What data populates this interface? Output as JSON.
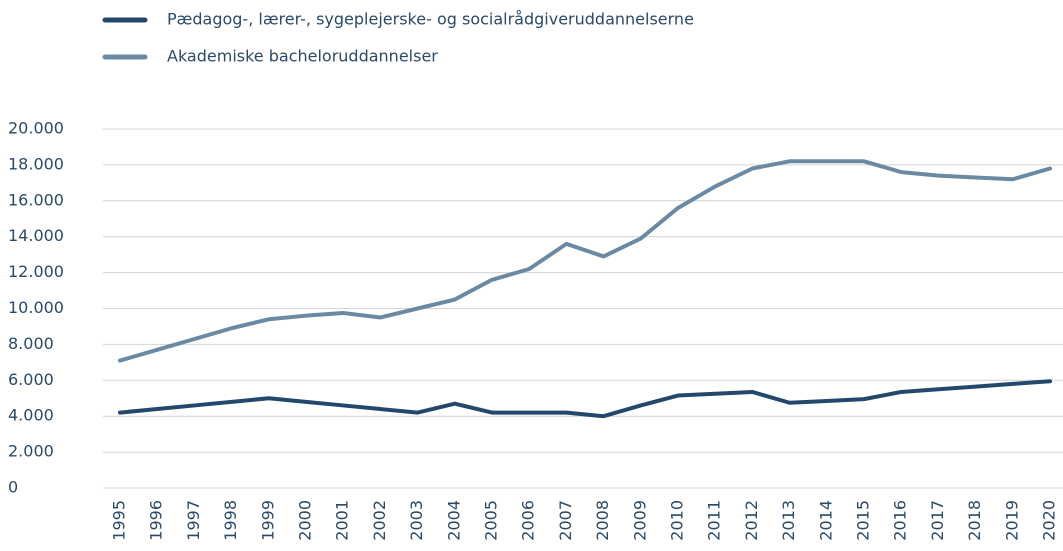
{
  "chart_data": {
    "type": "line",
    "categories": [
      "1995",
      "1996",
      "1997",
      "1998",
      "1999",
      "2000",
      "2001",
      "2002",
      "2003",
      "2004",
      "2005",
      "2006",
      "2007",
      "2008",
      "2009",
      "2010",
      "2011",
      "2012",
      "2013",
      "2014",
      "2015",
      "2016",
      "2017",
      "2018",
      "2019",
      "2020"
    ],
    "series": [
      {
        "name": "Pædagog-, lærer-, sygeplejerske- og socialrådgiveruddannelserne",
        "color": "#23486c",
        "values": [
          4200,
          4400,
          4600,
          4800,
          5000,
          4800,
          4600,
          4400,
          4200,
          4700,
          4200,
          4200,
          4200,
          4000,
          4600,
          5150,
          5250,
          5350,
          4750,
          4850,
          4950,
          5350,
          5500,
          5650,
          5800,
          5950
        ]
      },
      {
        "name": "Akademiske bacheloruddannelser",
        "color": "#6a8aa4",
        "values": [
          7100,
          7700,
          8300,
          8900,
          9400,
          9600,
          9750,
          9500,
          10000,
          10500,
          11600,
          12200,
          13600,
          12900,
          13900,
          15600,
          16800,
          17800,
          18200,
          18200,
          18200,
          17600,
          17400,
          17300,
          17200,
          17800
        ]
      }
    ],
    "ylim": [
      0,
      20000
    ],
    "yticks": [
      0,
      {
        "value": 2000,
        "label": "2.000"
      },
      {
        "value": 4000,
        "label": "4.000"
      },
      {
        "value": 6000,
        "label": "6.000"
      },
      {
        "value": 8000,
        "label": "8.000"
      },
      {
        "value": 10000,
        "label": "10.000"
      },
      {
        "value": 12000,
        "label": "12.000"
      },
      {
        "value": 14000,
        "label": "14.000"
      },
      {
        "value": 16000,
        "label": "16.000"
      },
      {
        "value": 18000,
        "label": "18.000"
      },
      {
        "value": 20000,
        "label": "20.000"
      }
    ],
    "grid": true
  }
}
